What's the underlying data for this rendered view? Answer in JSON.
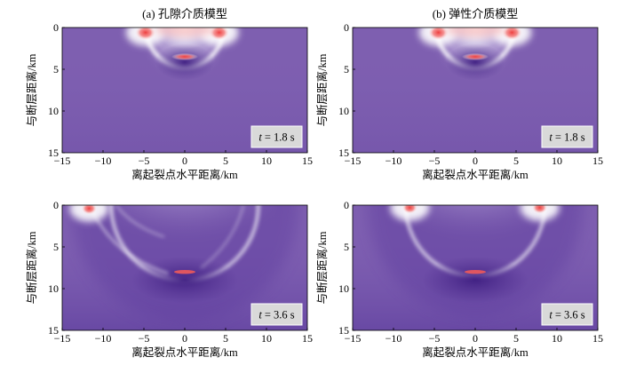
{
  "chart_data": [
    {
      "type": "heatmap",
      "title": "(a) 孔隙介质模型",
      "xlabel": "离起裂点水平距离/km",
      "ylabel": "与断层距离/km",
      "xlim": [
        -15,
        15
      ],
      "ylim": [
        0,
        15
      ],
      "xticks": [
        -15,
        -10,
        -5,
        0,
        5,
        10,
        15
      ],
      "yticks": [
        0,
        5,
        10,
        15
      ],
      "time_label": "t",
      "time_value": "= 1.8 s",
      "features": {
        "wavefront_radius_km": 4.5,
        "positive_lobes_km": [
          [
            -4.8,
            0.6
          ],
          [
            4.2,
            0.6
          ]
        ],
        "center_peak_km": [
          0,
          3.5
        ]
      }
    },
    {
      "type": "heatmap",
      "title": "(b) 弹性介质模型",
      "xlabel": "离起裂点水平距离/km",
      "ylabel": "与断层距离/km",
      "xlim": [
        -15,
        15
      ],
      "ylim": [
        0,
        15
      ],
      "xticks": [
        -15,
        -10,
        -5,
        0,
        5,
        10,
        15
      ],
      "yticks": [
        0,
        5,
        10,
        15
      ],
      "time_label": "t",
      "time_value": "= 1.8 s",
      "features": {
        "wavefront_radius_km": 4.5,
        "positive_lobes_km": [
          [
            -4.5,
            0.6
          ],
          [
            4.5,
            0.6
          ]
        ],
        "center_peak_km": [
          0,
          3.5
        ]
      }
    },
    {
      "type": "heatmap",
      "title": "",
      "xlabel": "离起裂点水平距离/km",
      "ylabel": "与断层距离/km",
      "xlim": [
        -15,
        15
      ],
      "ylim": [
        0,
        15
      ],
      "xticks": [
        -15,
        -10,
        -5,
        0,
        5,
        10,
        15
      ],
      "yticks": [
        0,
        5,
        10,
        15
      ],
      "time_label": "t",
      "time_value": "= 3.6 s",
      "features": {
        "wavefront_radius_km": 9.0,
        "positive_lobes_km": [
          [
            -11.7,
            0.4
          ]
        ],
        "center_peak_km": [
          0,
          8.0
        ]
      }
    },
    {
      "type": "heatmap",
      "title": "",
      "xlabel": "离起裂点水平距离/km",
      "ylabel": "与断层距离/km",
      "xlim": [
        -15,
        15
      ],
      "ylim": [
        0,
        15
      ],
      "xticks": [
        -15,
        -10,
        -5,
        0,
        5,
        10,
        15
      ],
      "yticks": [
        0,
        5,
        10,
        15
      ],
      "time_label": "t",
      "time_value": "= 3.6 s",
      "features": {
        "wavefront_radius_km": 8.5,
        "positive_lobes_km": [
          [
            -8.0,
            0.3
          ],
          [
            7.9,
            0.3
          ]
        ],
        "center_peak_km": [
          0,
          8.0
        ]
      }
    }
  ],
  "colors": {
    "background": "#7e5fb0",
    "positive": "#f26060",
    "white": "#ffffff",
    "dark": "#4b2a8c",
    "label_box": "#d9d9d9"
  }
}
